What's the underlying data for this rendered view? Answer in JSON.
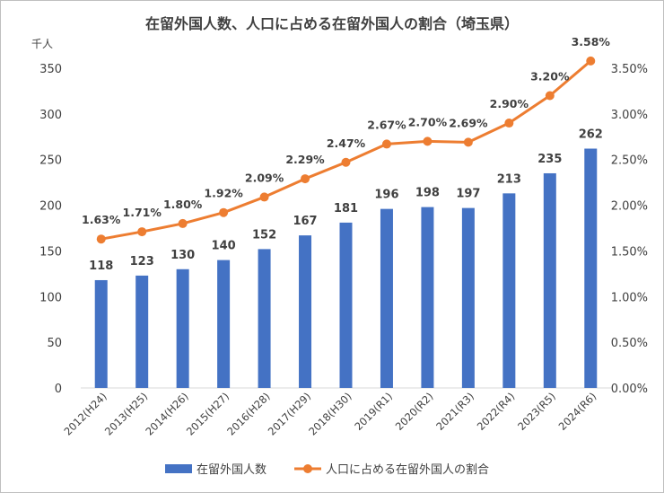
{
  "chart_data": {
    "type": "bar",
    "title": "在留外国人数、人口に占める在留外国人の割合（埼玉県）",
    "categories": [
      "2012(H24)",
      "2013(H25)",
      "2014(H26)",
      "2015(H27)",
      "2016(H28)",
      "2017(H29)",
      "2018(H30)",
      "2019(R1)",
      "2020(R2)",
      "2021(R3)",
      "2022(R4)",
      "2023(R5)",
      "2024(R6)"
    ],
    "series": [
      {
        "name": "在留外国人数",
        "type": "bar",
        "axis": "left",
        "color": "#4472C4",
        "values": [
          118,
          123,
          130,
          140,
          152,
          167,
          181,
          196,
          198,
          197,
          213,
          235,
          262
        ],
        "labels": [
          "118",
          "123",
          "130",
          "140",
          "152",
          "167",
          "181",
          "196",
          "198",
          "197",
          "213",
          "235",
          "262"
        ]
      },
      {
        "name": "人口に占める在留外国人の割合",
        "type": "line",
        "axis": "right",
        "color": "#ED7D31",
        "values": [
          1.63,
          1.71,
          1.8,
          1.92,
          2.09,
          2.29,
          2.47,
          2.67,
          2.7,
          2.69,
          2.9,
          3.2,
          3.58
        ],
        "labels": [
          "1.63%",
          "1.71%",
          "1.80%",
          "1.92%",
          "2.09%",
          "2.29%",
          "2.47%",
          "2.67%",
          "2.70%",
          "2.69%",
          "2.90%",
          "3.20%",
          "3.58%"
        ]
      }
    ],
    "y_left": {
      "unit": "千人",
      "range": [
        0,
        350
      ],
      "ticks": [
        0,
        50,
        100,
        150,
        200,
        250,
        300,
        350
      ],
      "tick_labels": [
        "0",
        "50",
        "100",
        "150",
        "200",
        "250",
        "300",
        "350"
      ]
    },
    "y_right": {
      "range": [
        0,
        3.5
      ],
      "ticks": [
        0,
        0.5,
        1.0,
        1.5,
        2.0,
        2.5,
        3.0,
        3.5
      ],
      "tick_labels": [
        "0.00%",
        "0.50%",
        "1.00%",
        "1.50%",
        "2.00%",
        "2.50%",
        "3.00%",
        "3.50%"
      ]
    },
    "grid": false,
    "legend_position": "bottom"
  }
}
